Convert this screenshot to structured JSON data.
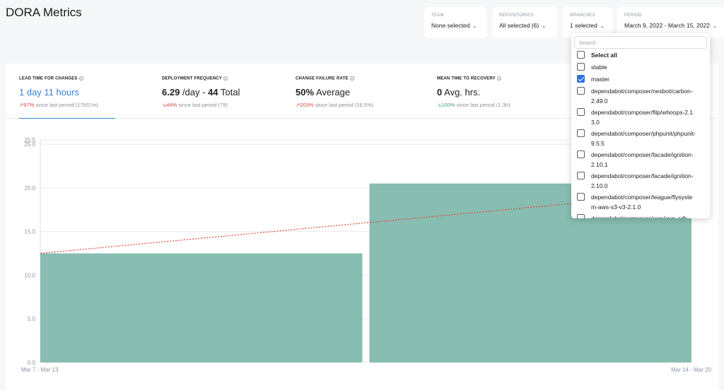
{
  "page": {
    "title": "DORA Metrics"
  },
  "filters": {
    "team": {
      "label": "TEAM",
      "value": "None selected"
    },
    "repositories": {
      "label": "REPOSITORIES",
      "value": "All selected (6)"
    },
    "branches": {
      "label": "BRANCHES",
      "value": "1 selected"
    },
    "period": {
      "label": "PERIOD",
      "value": "March 9, 2022 - March 15, 2022"
    }
  },
  "metrics": {
    "lead_time": {
      "label": "LEAD TIME FOR CHANGES",
      "value": "1 day 11 hours",
      "delta_pct": "97%",
      "delta_text": "since last period (17h57m)",
      "color": "#3b82d6"
    },
    "deploy_freq": {
      "label": "DEPLOYMENT FREQUENCY",
      "value_num": "6.29",
      "value_unit": "/day - ",
      "value_total": "44",
      "value_total_label": "Total",
      "delta_pct": "44%",
      "delta_text": "since last period (79)"
    },
    "cfr": {
      "label": "CHANGE FAILURE RATE",
      "value_num": "50%",
      "value_unit": "Average",
      "delta_pct": "203%",
      "delta_text": "since last period (16.5%)"
    },
    "mttr": {
      "label": "MEAN TIME TO RECOVERY",
      "value_num": "0",
      "value_unit": "Avg. hrs.",
      "delta_pct": "100%",
      "delta_text": "since last period (1.3h)"
    }
  },
  "branch_dropdown": {
    "search_placeholder": "Search",
    "items": [
      {
        "label": "Select all",
        "checked": false,
        "bold": true
      },
      {
        "label": "stable",
        "checked": false
      },
      {
        "label": "master",
        "checked": true
      },
      {
        "label": "dependabot/composer/nesbot/carbon-2.49.0",
        "checked": false
      },
      {
        "label": "dependabot/composer/filp/whoops-2.13.0",
        "checked": false
      },
      {
        "label": "dependabot/composer/phpunit/phpunit-9.5.5",
        "checked": false
      },
      {
        "label": "dependabot/composer/facade/ignition-2.10.1",
        "checked": false
      },
      {
        "label": "dependabot/composer/facade/ignition-2.10.0",
        "checked": false
      },
      {
        "label": "dependabot/composer/league/flysystem-aws-s3-v3-2.1.0",
        "checked": false
      },
      {
        "label": "dependabot/composer/aws/aws-sdk",
        "checked": false
      }
    ]
  },
  "colors": {
    "bar": "#88bdb1",
    "trend": "#e0463f",
    "accent": "#3b82d6"
  },
  "chart_data": {
    "type": "bar",
    "categories": [
      "Mar 7 - Mar 13",
      "Mar 14 - Mar 20"
    ],
    "values": [
      12.5,
      20.5
    ],
    "trend": [
      12.5,
      19.5
    ],
    "ylim": [
      0,
      25.5
    ],
    "yticks": [
      "0.0",
      "5.0",
      "10.0",
      "15.0",
      "20.0",
      "25.0",
      "25.5"
    ],
    "grid": true
  }
}
